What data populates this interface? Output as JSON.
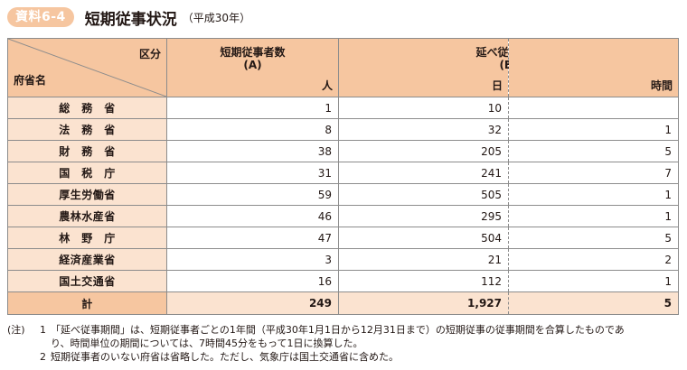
{
  "header": {
    "badge": "資料6-4",
    "title": "短期従事状況",
    "subtitle": "（平成30年）"
  },
  "table": {
    "corner_top": "区分",
    "corner_bottom": "府省名",
    "col_workers": {
      "line1": "短期従事者数",
      "line2": "(A)",
      "unit": "人"
    },
    "col_period": {
      "line1": "延べ従事期間",
      "line2": "(B)",
      "unit_days": "日",
      "unit_hours": "時間"
    },
    "rows": [
      {
        "name": "総　務　省",
        "workers": "1",
        "days": "10",
        "hours": ""
      },
      {
        "name": "法　務　省",
        "workers": "8",
        "days": "32",
        "hours": "1"
      },
      {
        "name": "財　務　省",
        "workers": "38",
        "days": "205",
        "hours": "5"
      },
      {
        "name": "国　税　庁",
        "workers": "31",
        "days": "241",
        "hours": "7"
      },
      {
        "name": "厚生労働省",
        "workers": "59",
        "days": "505",
        "hours": "1"
      },
      {
        "name": "農林水産省",
        "workers": "46",
        "days": "295",
        "hours": "1"
      },
      {
        "name": "林　野　庁",
        "workers": "47",
        "days": "504",
        "hours": "5"
      },
      {
        "name": "経済産業省",
        "workers": "3",
        "days": "21",
        "hours": "2"
      },
      {
        "name": "国土交通省",
        "workers": "16",
        "days": "112",
        "hours": "1"
      }
    ],
    "total": {
      "name": "計",
      "workers": "249",
      "days": "1,927",
      "hours": "5"
    }
  },
  "notes": {
    "prefix": "(注)",
    "items": [
      {
        "num": "1",
        "line1": "「延べ従事期間」は、短期従事者ごとの1年間（平成30年1月1日から12月31日まで）の短期従事の従事期間を合算したものであ",
        "line2": "り、時間単位の期間については、7時間45分をもって1日に換算した。"
      },
      {
        "num": "2",
        "line1": "短期従事者のいない府省は省略した。ただし、気象庁は国土交通省に含めた。"
      }
    ]
  }
}
